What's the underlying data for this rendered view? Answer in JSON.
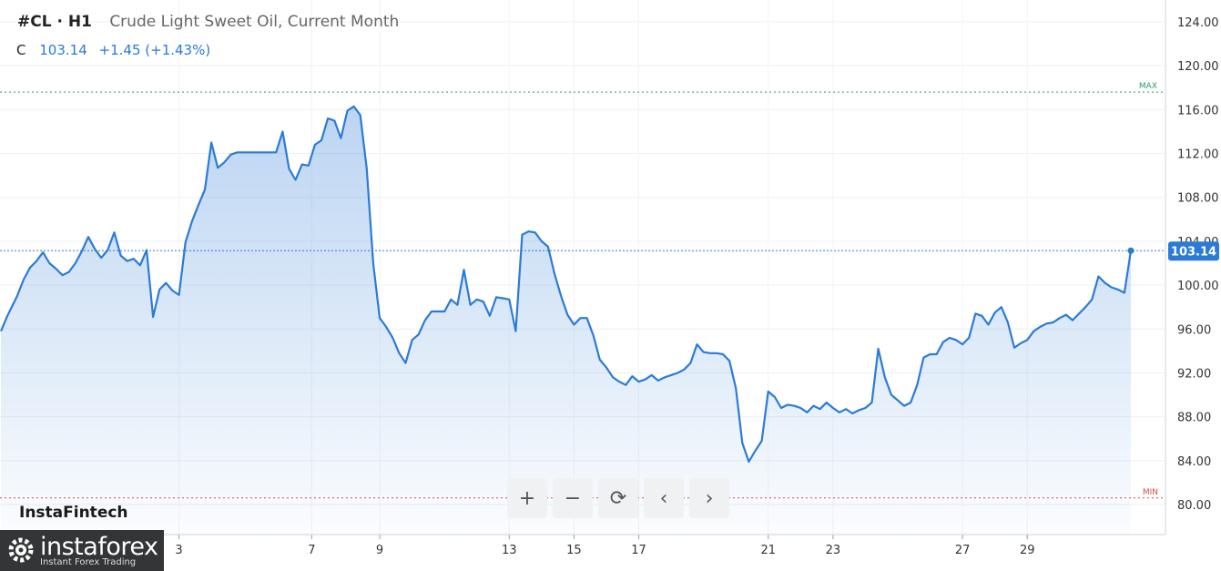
{
  "header": {
    "symbol": "#CL · H1",
    "description": "Crude Light Sweet Oil, Current Month"
  },
  "quote": {
    "label": "C",
    "price": "103.14",
    "change": "+1.45 (+1.43%)"
  },
  "branding": {
    "watermark": "InstaFintech",
    "logo_name": "instaforex",
    "logo_tagline": "Instant Forex Trading"
  },
  "toolbar": {
    "zoom_in": "+",
    "zoom_out": "−",
    "reset": "⟳",
    "prev": "‹",
    "next": "›"
  },
  "colors": {
    "line": "#2b7bd6",
    "max_line": "#2a9a6a",
    "min_line": "#d84a4a",
    "current_badge": "#2b7bd6"
  },
  "chart_data": {
    "type": "area",
    "ylim": [
      78,
      126
    ],
    "y_ticks": [
      "124.00",
      "120.00",
      "116.00",
      "112.00",
      "108.00",
      "104.00",
      "100.00",
      "96.00",
      "92.00",
      "88.00",
      "84.00",
      "80.00"
    ],
    "x_ticks": [
      {
        "label": "3",
        "pos": 5.8
      },
      {
        "label": "7",
        "pos": 9.9
      },
      {
        "label": "9",
        "pos": 12.0
      },
      {
        "label": "13",
        "pos": 16.0
      },
      {
        "label": "15",
        "pos": 18.0
      },
      {
        "label": "17",
        "pos": 20.0
      },
      {
        "label": "21",
        "pos": 24.0
      },
      {
        "label": "23",
        "pos": 26.0
      },
      {
        "label": "27",
        "pos": 30.0
      },
      {
        "label": "29",
        "pos": 32.0
      }
    ],
    "x_range": [
      0.3,
      35.2
    ],
    "max_label": "MAX",
    "min_label": "MIN",
    "max_value": 117.6,
    "min_value": 80.6,
    "current_value": 103.14,
    "current_label": "103.14",
    "series": [
      {
        "points": [
          [
            0.3,
            95.8
          ],
          [
            0.5,
            97.2
          ],
          [
            0.8,
            99.0
          ],
          [
            1.0,
            100.5
          ],
          [
            1.2,
            101.6
          ],
          [
            1.4,
            102.2
          ],
          [
            1.6,
            103.0
          ],
          [
            1.8,
            102.0
          ],
          [
            2.0,
            101.5
          ],
          [
            2.2,
            100.9
          ],
          [
            2.4,
            101.2
          ],
          [
            2.6,
            102.0
          ],
          [
            2.8,
            103.1
          ],
          [
            3.0,
            104.4
          ],
          [
            3.2,
            103.3
          ],
          [
            3.4,
            102.5
          ],
          [
            3.6,
            103.2
          ],
          [
            3.8,
            104.8
          ],
          [
            4.0,
            102.7
          ],
          [
            4.2,
            102.2
          ],
          [
            4.4,
            102.4
          ],
          [
            4.6,
            101.8
          ],
          [
            4.8,
            103.2
          ],
          [
            5.0,
            97.1
          ],
          [
            5.2,
            99.6
          ],
          [
            5.4,
            100.2
          ],
          [
            5.6,
            99.5
          ],
          [
            5.8,
            99.1
          ],
          [
            6.0,
            103.9
          ],
          [
            6.2,
            105.8
          ],
          [
            6.4,
            107.3
          ],
          [
            6.6,
            108.7
          ],
          [
            6.8,
            113.0
          ],
          [
            7.0,
            110.7
          ],
          [
            7.2,
            111.2
          ],
          [
            7.4,
            111.9
          ],
          [
            7.6,
            112.1
          ],
          [
            7.8,
            112.1
          ],
          [
            8.0,
            112.1
          ],
          [
            8.2,
            112.1
          ],
          [
            8.4,
            112.1
          ],
          [
            8.6,
            112.1
          ],
          [
            8.8,
            112.1
          ],
          [
            9.0,
            114.0
          ],
          [
            9.2,
            110.6
          ],
          [
            9.4,
            109.6
          ],
          [
            9.6,
            111.0
          ],
          [
            9.8,
            110.9
          ],
          [
            10.0,
            112.8
          ],
          [
            10.2,
            113.2
          ],
          [
            10.4,
            115.2
          ],
          [
            10.6,
            115.0
          ],
          [
            10.8,
            113.4
          ],
          [
            11.0,
            115.9
          ],
          [
            11.2,
            116.3
          ],
          [
            11.4,
            115.5
          ],
          [
            11.6,
            110.6
          ],
          [
            11.8,
            102.0
          ],
          [
            12.0,
            97.0
          ],
          [
            12.2,
            96.2
          ],
          [
            12.4,
            95.2
          ],
          [
            12.6,
            93.8
          ],
          [
            12.8,
            92.9
          ],
          [
            13.0,
            95.0
          ],
          [
            13.2,
            95.5
          ],
          [
            13.4,
            96.8
          ],
          [
            13.6,
            97.6
          ],
          [
            13.8,
            97.6
          ],
          [
            14.0,
            97.6
          ],
          [
            14.2,
            98.7
          ],
          [
            14.4,
            98.2
          ],
          [
            14.6,
            101.4
          ],
          [
            14.8,
            98.2
          ],
          [
            15.0,
            98.7
          ],
          [
            15.2,
            98.5
          ],
          [
            15.4,
            97.2
          ],
          [
            15.6,
            98.9
          ],
          [
            15.8,
            98.8
          ],
          [
            16.0,
            98.7
          ],
          [
            16.2,
            95.8
          ],
          [
            16.4,
            104.6
          ],
          [
            16.6,
            104.9
          ],
          [
            16.8,
            104.8
          ],
          [
            17.0,
            104.0
          ],
          [
            17.2,
            103.5
          ],
          [
            17.4,
            101.0
          ],
          [
            17.6,
            99.0
          ],
          [
            17.8,
            97.3
          ],
          [
            18.0,
            96.4
          ],
          [
            18.2,
            97.0
          ],
          [
            18.4,
            97.0
          ],
          [
            18.6,
            95.4
          ],
          [
            18.8,
            93.2
          ],
          [
            19.0,
            92.5
          ],
          [
            19.2,
            91.6
          ],
          [
            19.4,
            91.2
          ],
          [
            19.6,
            90.9
          ],
          [
            19.8,
            91.7
          ],
          [
            20.0,
            91.2
          ],
          [
            20.2,
            91.4
          ],
          [
            20.4,
            91.8
          ],
          [
            20.6,
            91.3
          ],
          [
            20.8,
            91.6
          ],
          [
            21.0,
            91.8
          ],
          [
            21.2,
            92.0
          ],
          [
            21.4,
            92.3
          ],
          [
            21.6,
            92.9
          ],
          [
            21.8,
            94.6
          ],
          [
            22.0,
            93.9
          ],
          [
            22.2,
            93.8
          ],
          [
            22.4,
            93.8
          ],
          [
            22.6,
            93.7
          ],
          [
            22.8,
            93.1
          ],
          [
            23.0,
            90.6
          ],
          [
            23.2,
            85.6
          ],
          [
            23.4,
            83.9
          ],
          [
            23.6,
            84.9
          ],
          [
            23.8,
            85.8
          ],
          [
            24.0,
            90.3
          ],
          [
            24.2,
            89.8
          ],
          [
            24.4,
            88.8
          ],
          [
            24.6,
            89.1
          ],
          [
            24.8,
            89.0
          ],
          [
            25.0,
            88.8
          ],
          [
            25.2,
            88.4
          ],
          [
            25.4,
            89.0
          ],
          [
            25.6,
            88.7
          ],
          [
            25.8,
            89.3
          ],
          [
            26.0,
            88.8
          ],
          [
            26.2,
            88.4
          ],
          [
            26.4,
            88.7
          ],
          [
            26.6,
            88.3
          ],
          [
            26.8,
            88.6
          ],
          [
            27.0,
            88.8
          ],
          [
            27.2,
            89.3
          ],
          [
            27.4,
            94.2
          ],
          [
            27.6,
            91.6
          ],
          [
            27.8,
            90.0
          ],
          [
            28.0,
            89.5
          ],
          [
            28.2,
            89.0
          ],
          [
            28.4,
            89.3
          ],
          [
            28.6,
            90.9
          ],
          [
            28.8,
            93.4
          ],
          [
            29.0,
            93.7
          ],
          [
            29.2,
            93.7
          ],
          [
            29.4,
            94.8
          ],
          [
            29.6,
            95.2
          ],
          [
            29.8,
            95.0
          ],
          [
            30.0,
            94.6
          ],
          [
            30.2,
            95.2
          ],
          [
            30.4,
            97.4
          ],
          [
            30.6,
            97.2
          ],
          [
            30.8,
            96.4
          ],
          [
            31.0,
            97.5
          ],
          [
            31.2,
            98.0
          ],
          [
            31.4,
            96.6
          ],
          [
            31.6,
            94.3
          ],
          [
            31.8,
            94.7
          ],
          [
            32.0,
            95.0
          ],
          [
            32.2,
            95.8
          ],
          [
            32.4,
            96.2
          ],
          [
            32.6,
            96.5
          ],
          [
            32.8,
            96.6
          ],
          [
            33.0,
            97.0
          ],
          [
            33.2,
            97.3
          ],
          [
            33.4,
            96.8
          ],
          [
            33.6,
            97.4
          ],
          [
            33.8,
            98.0
          ],
          [
            34.0,
            98.7
          ],
          [
            34.2,
            100.8
          ],
          [
            34.4,
            100.2
          ],
          [
            34.6,
            99.8
          ],
          [
            34.8,
            99.6
          ],
          [
            35.0,
            99.3
          ],
          [
            35.2,
            103.14
          ]
        ]
      }
    ]
  }
}
